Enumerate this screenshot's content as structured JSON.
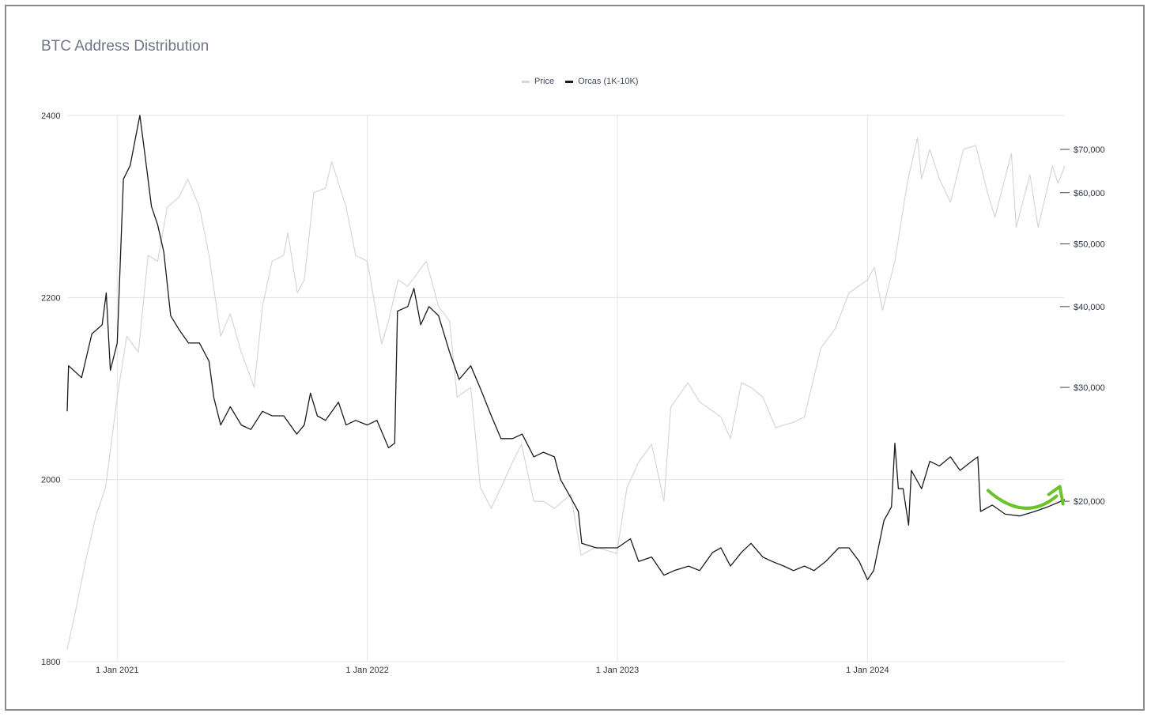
{
  "chart_data": {
    "type": "line",
    "title": "BTC Address Distribution",
    "legend_position": "top-center",
    "grid": true,
    "x_axis": {
      "type": "date",
      "range": [
        "2020-10-20",
        "2024-10-15"
      ],
      "ticks": [
        {
          "date": "2021-01-01",
          "label": "1 Jan 2021"
        },
        {
          "date": "2022-01-01",
          "label": "1 Jan 2022"
        },
        {
          "date": "2023-01-01",
          "label": "1 Jan 2023"
        },
        {
          "date": "2024-01-01",
          "label": "1 Jan 2024"
        }
      ]
    },
    "y_left": {
      "range": [
        1800,
        2400
      ],
      "ticks": [
        {
          "value": 1800,
          "label": "1800"
        },
        {
          "value": 2000,
          "label": "2000"
        },
        {
          "value": 2200,
          "label": "2200"
        },
        {
          "value": 2400,
          "label": "2400"
        }
      ]
    },
    "y_right": {
      "scale": "log",
      "range": [
        11300,
        79000
      ],
      "ticks": [
        {
          "value": 20000,
          "label": "$20,000"
        },
        {
          "value": 30000,
          "label": "$30,000"
        },
        {
          "value": 40000,
          "label": "$40,000"
        },
        {
          "value": 50000,
          "label": "$50,000"
        },
        {
          "value": 60000,
          "label": "$60,000"
        },
        {
          "value": 70000,
          "label": "$70,000"
        }
      ]
    },
    "series": [
      {
        "name": "Price",
        "axis": "right",
        "color": "#d6d6d6",
        "points": [
          [
            "2020-10-20",
            11800
          ],
          [
            "2020-11-01",
            13500
          ],
          [
            "2020-11-15",
            16000
          ],
          [
            "2020-12-01",
            19000
          ],
          [
            "2020-12-15",
            21000
          ],
          [
            "2021-01-01",
            29000
          ],
          [
            "2021-01-15",
            36000
          ],
          [
            "2021-02-01",
            34000
          ],
          [
            "2021-02-15",
            48000
          ],
          [
            "2021-03-01",
            47000
          ],
          [
            "2021-03-15",
            57000
          ],
          [
            "2021-04-01",
            59000
          ],
          [
            "2021-04-14",
            63000
          ],
          [
            "2021-05-01",
            57000
          ],
          [
            "2021-05-15",
            48000
          ],
          [
            "2021-06-01",
            36000
          ],
          [
            "2021-06-15",
            39000
          ],
          [
            "2021-07-01",
            34000
          ],
          [
            "2021-07-20",
            30000
          ],
          [
            "2021-08-01",
            40000
          ],
          [
            "2021-08-15",
            47000
          ],
          [
            "2021-09-01",
            48000
          ],
          [
            "2021-09-07",
            52000
          ],
          [
            "2021-09-21",
            42000
          ],
          [
            "2021-10-01",
            44000
          ],
          [
            "2021-10-15",
            60000
          ],
          [
            "2021-11-01",
            61000
          ],
          [
            "2021-11-10",
            67000
          ],
          [
            "2021-12-01",
            57000
          ],
          [
            "2021-12-15",
            48000
          ],
          [
            "2022-01-01",
            47000
          ],
          [
            "2022-01-22",
            35000
          ],
          [
            "2022-02-01",
            38000
          ],
          [
            "2022-02-15",
            44000
          ],
          [
            "2022-03-01",
            43000
          ],
          [
            "2022-03-28",
            47000
          ],
          [
            "2022-04-15",
            40000
          ],
          [
            "2022-05-01",
            38000
          ],
          [
            "2022-05-12",
            29000
          ],
          [
            "2022-06-01",
            30000
          ],
          [
            "2022-06-15",
            21000
          ],
          [
            "2022-07-01",
            19500
          ],
          [
            "2022-07-15",
            21000
          ],
          [
            "2022-08-01",
            23000
          ],
          [
            "2022-08-14",
            24500
          ],
          [
            "2022-09-01",
            20000
          ],
          [
            "2022-09-15",
            20000
          ],
          [
            "2022-10-01",
            19500
          ],
          [
            "2022-10-25",
            20500
          ],
          [
            "2022-11-09",
            16500
          ],
          [
            "2022-12-01",
            17000
          ],
          [
            "2022-12-31",
            16600
          ],
          [
            "2023-01-15",
            21000
          ],
          [
            "2023-02-01",
            23000
          ],
          [
            "2023-02-20",
            24500
          ],
          [
            "2023-03-10",
            20000
          ],
          [
            "2023-03-20",
            28000
          ],
          [
            "2023-04-14",
            30500
          ],
          [
            "2023-05-01",
            28500
          ],
          [
            "2023-06-01",
            27000
          ],
          [
            "2023-06-15",
            25000
          ],
          [
            "2023-07-01",
            30500
          ],
          [
            "2023-07-15",
            30000
          ],
          [
            "2023-08-01",
            29000
          ],
          [
            "2023-08-20",
            26000
          ],
          [
            "2023-09-15",
            26500
          ],
          [
            "2023-10-01",
            27000
          ],
          [
            "2023-10-25",
            34500
          ],
          [
            "2023-11-15",
            37000
          ],
          [
            "2023-12-05",
            42000
          ],
          [
            "2024-01-01",
            44000
          ],
          [
            "2024-01-11",
            46000
          ],
          [
            "2024-01-23",
            39500
          ],
          [
            "2024-02-10",
            47000
          ],
          [
            "2024-02-28",
            62000
          ],
          [
            "2024-03-14",
            73000
          ],
          [
            "2024-03-20",
            63000
          ],
          [
            "2024-04-01",
            70000
          ],
          [
            "2024-04-15",
            63000
          ],
          [
            "2024-05-01",
            58000
          ],
          [
            "2024-05-20",
            70000
          ],
          [
            "2024-06-07",
            71000
          ],
          [
            "2024-06-24",
            60000
          ],
          [
            "2024-07-05",
            55000
          ],
          [
            "2024-07-29",
            69000
          ],
          [
            "2024-08-05",
            53000
          ],
          [
            "2024-08-25",
            64000
          ],
          [
            "2024-09-06",
            53000
          ],
          [
            "2024-09-27",
            66000
          ],
          [
            "2024-10-05",
            62000
          ],
          [
            "2024-10-15",
            66000
          ]
        ]
      },
      {
        "name": "Orcas (1K-10K)",
        "axis": "left",
        "color": "#1a1a1a",
        "points": [
          [
            "2020-10-20",
            2075
          ],
          [
            "2020-10-22",
            2125
          ],
          [
            "2020-11-10",
            2112
          ],
          [
            "2020-11-25",
            2160
          ],
          [
            "2020-12-10",
            2170
          ],
          [
            "2020-12-16",
            2205
          ],
          [
            "2020-12-22",
            2120
          ],
          [
            "2021-01-01",
            2150
          ],
          [
            "2021-01-10",
            2330
          ],
          [
            "2021-01-20",
            2345
          ],
          [
            "2021-02-03",
            2400
          ],
          [
            "2021-02-10",
            2360
          ],
          [
            "2021-02-20",
            2300
          ],
          [
            "2021-03-01",
            2280
          ],
          [
            "2021-03-10",
            2250
          ],
          [
            "2021-03-20",
            2180
          ],
          [
            "2021-04-01",
            2165
          ],
          [
            "2021-04-15",
            2150
          ],
          [
            "2021-05-01",
            2150
          ],
          [
            "2021-05-15",
            2130
          ],
          [
            "2021-05-22",
            2090
          ],
          [
            "2021-06-01",
            2060
          ],
          [
            "2021-06-15",
            2080
          ],
          [
            "2021-07-01",
            2060
          ],
          [
            "2021-07-15",
            2055
          ],
          [
            "2021-08-01",
            2075
          ],
          [
            "2021-08-15",
            2070
          ],
          [
            "2021-09-01",
            2070
          ],
          [
            "2021-09-20",
            2050
          ],
          [
            "2021-10-01",
            2060
          ],
          [
            "2021-10-10",
            2095
          ],
          [
            "2021-10-20",
            2070
          ],
          [
            "2021-11-01",
            2065
          ],
          [
            "2021-11-20",
            2085
          ],
          [
            "2021-12-01",
            2060
          ],
          [
            "2021-12-15",
            2065
          ],
          [
            "2022-01-01",
            2060
          ],
          [
            "2022-01-15",
            2065
          ],
          [
            "2022-02-01",
            2035
          ],
          [
            "2022-02-10",
            2040
          ],
          [
            "2022-02-14",
            2185
          ],
          [
            "2022-03-01",
            2190
          ],
          [
            "2022-03-10",
            2210
          ],
          [
            "2022-03-20",
            2170
          ],
          [
            "2022-04-01",
            2190
          ],
          [
            "2022-04-15",
            2180
          ],
          [
            "2022-05-01",
            2140
          ],
          [
            "2022-05-15",
            2110
          ],
          [
            "2022-06-01",
            2125
          ],
          [
            "2022-06-15",
            2100
          ],
          [
            "2022-07-01",
            2070
          ],
          [
            "2022-07-15",
            2045
          ],
          [
            "2022-08-01",
            2045
          ],
          [
            "2022-08-15",
            2050
          ],
          [
            "2022-09-01",
            2025
          ],
          [
            "2022-09-15",
            2030
          ],
          [
            "2022-10-01",
            2025
          ],
          [
            "2022-10-10",
            2000
          ],
          [
            "2022-10-25",
            1980
          ],
          [
            "2022-11-05",
            1965
          ],
          [
            "2022-11-10",
            1930
          ],
          [
            "2022-12-01",
            1925
          ],
          [
            "2023-01-01",
            1925
          ],
          [
            "2023-01-20",
            1935
          ],
          [
            "2023-02-01",
            1910
          ],
          [
            "2023-02-20",
            1915
          ],
          [
            "2023-03-10",
            1895
          ],
          [
            "2023-03-25",
            1900
          ],
          [
            "2023-04-15",
            1905
          ],
          [
            "2023-05-01",
            1900
          ],
          [
            "2023-05-20",
            1920
          ],
          [
            "2023-06-01",
            1925
          ],
          [
            "2023-06-15",
            1905
          ],
          [
            "2023-07-01",
            1920
          ],
          [
            "2023-07-15",
            1930
          ],
          [
            "2023-08-01",
            1915
          ],
          [
            "2023-08-15",
            1910
          ],
          [
            "2023-09-01",
            1905
          ],
          [
            "2023-09-15",
            1900
          ],
          [
            "2023-10-01",
            1905
          ],
          [
            "2023-10-15",
            1900
          ],
          [
            "2023-11-01",
            1910
          ],
          [
            "2023-11-20",
            1925
          ],
          [
            "2023-12-05",
            1925
          ],
          [
            "2023-12-20",
            1910
          ],
          [
            "2024-01-01",
            1890
          ],
          [
            "2024-01-10",
            1900
          ],
          [
            "2024-01-25",
            1955
          ],
          [
            "2024-02-05",
            1970
          ],
          [
            "2024-02-10",
            2040
          ],
          [
            "2024-02-15",
            1990
          ],
          [
            "2024-02-22",
            1990
          ],
          [
            "2024-03-01",
            1950
          ],
          [
            "2024-03-05",
            2010
          ],
          [
            "2024-03-20",
            1990
          ],
          [
            "2024-04-01",
            2020
          ],
          [
            "2024-04-15",
            2015
          ],
          [
            "2024-05-01",
            2025
          ],
          [
            "2024-05-15",
            2010
          ],
          [
            "2024-06-01",
            2020
          ],
          [
            "2024-06-10",
            2025
          ],
          [
            "2024-06-14",
            1965
          ],
          [
            "2024-07-01",
            1972
          ],
          [
            "2024-07-20",
            1962
          ],
          [
            "2024-08-10",
            1960
          ],
          [
            "2024-09-01",
            1965
          ],
          [
            "2024-09-20",
            1970
          ],
          [
            "2024-10-15",
            1978
          ]
        ]
      }
    ],
    "annotation": {
      "shape": "curved-arrow",
      "color": "#6ac32a",
      "from": [
        "2024-06-25",
        1988
      ],
      "to": [
        "2024-10-10",
        1975
      ]
    }
  }
}
